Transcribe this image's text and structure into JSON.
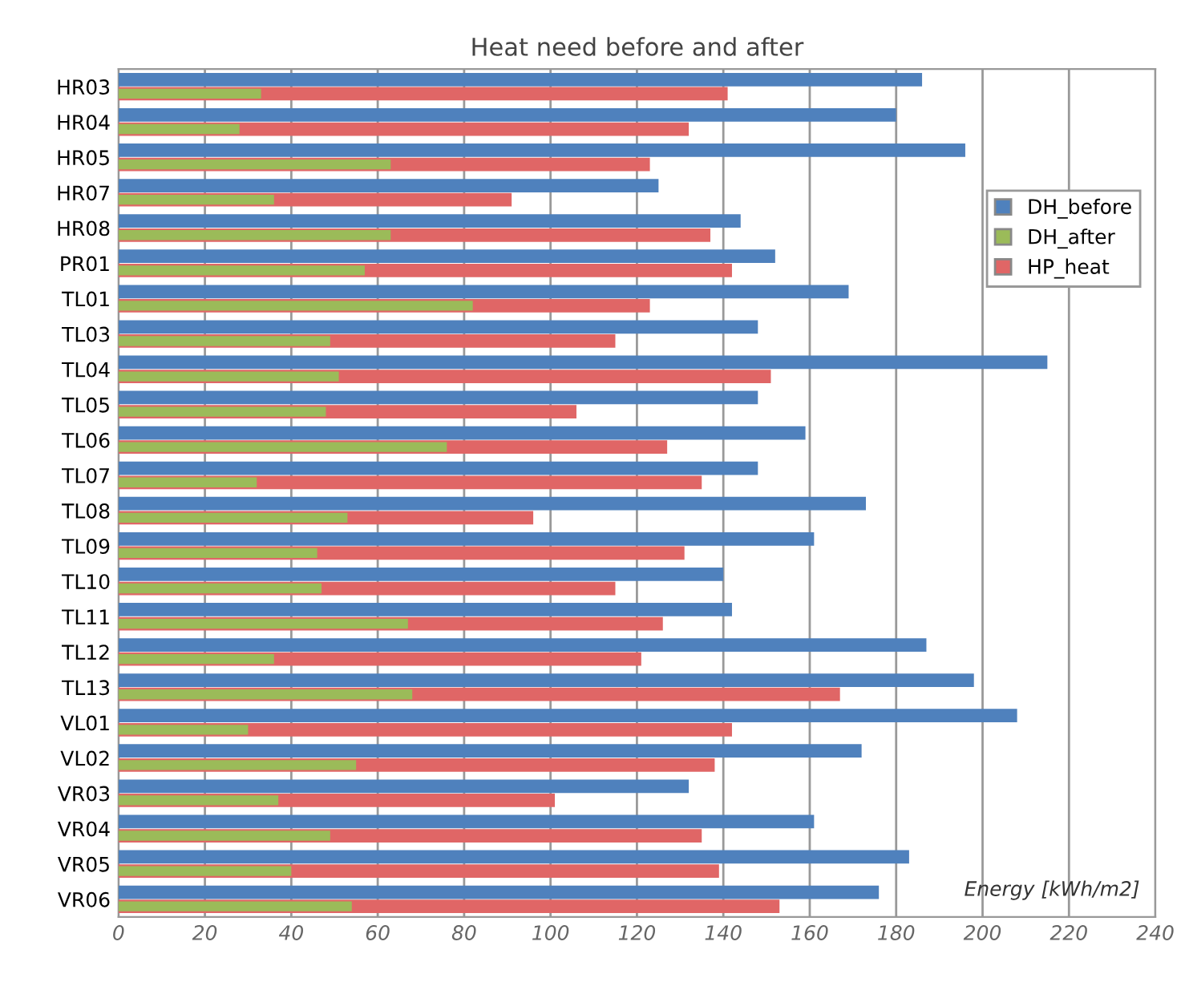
{
  "chart_data": {
    "type": "bar",
    "orientation": "horizontal",
    "title": "Heat need before and after",
    "xlabel": "Energy [kWh/m2]",
    "categories": [
      "HR03",
      "HR04",
      "HR05",
      "HR07",
      "HR08",
      "PR01",
      "TL01",
      "TL03",
      "TL04",
      "TL05",
      "TL06",
      "TL07",
      "TL08",
      "TL09",
      "TL10",
      "TL11",
      "TL12",
      "TL13",
      "VL01",
      "VL02",
      "VR03",
      "VR04",
      "VR05",
      "VR06"
    ],
    "series": [
      {
        "name": "DH_before",
        "color": "#4f81bd",
        "values": [
          186,
          180,
          196,
          125,
          144,
          152,
          169,
          148,
          215,
          148,
          159,
          148,
          173,
          161,
          140,
          142,
          187,
          198,
          208,
          172,
          132,
          161,
          183,
          176
        ]
      },
      {
        "name": "DH_after",
        "color": "#9bbb59",
        "values": [
          33,
          28,
          63,
          36,
          63,
          57,
          82,
          49,
          51,
          48,
          76,
          32,
          53,
          46,
          47,
          67,
          36,
          68,
          30,
          55,
          37,
          49,
          40,
          54
        ]
      },
      {
        "name": "HP_heat",
        "color": "#e06666",
        "values": [
          141,
          132,
          123,
          91,
          137,
          142,
          123,
          115,
          151,
          106,
          127,
          135,
          96,
          131,
          115,
          126,
          121,
          167,
          142,
          138,
          101,
          135,
          139,
          153
        ]
      }
    ],
    "xlim": [
      0,
      240
    ],
    "xticks": [
      0,
      20,
      40,
      60,
      80,
      100,
      120,
      140,
      160,
      180,
      200,
      220,
      240
    ],
    "grid": "x",
    "legend": "right"
  }
}
